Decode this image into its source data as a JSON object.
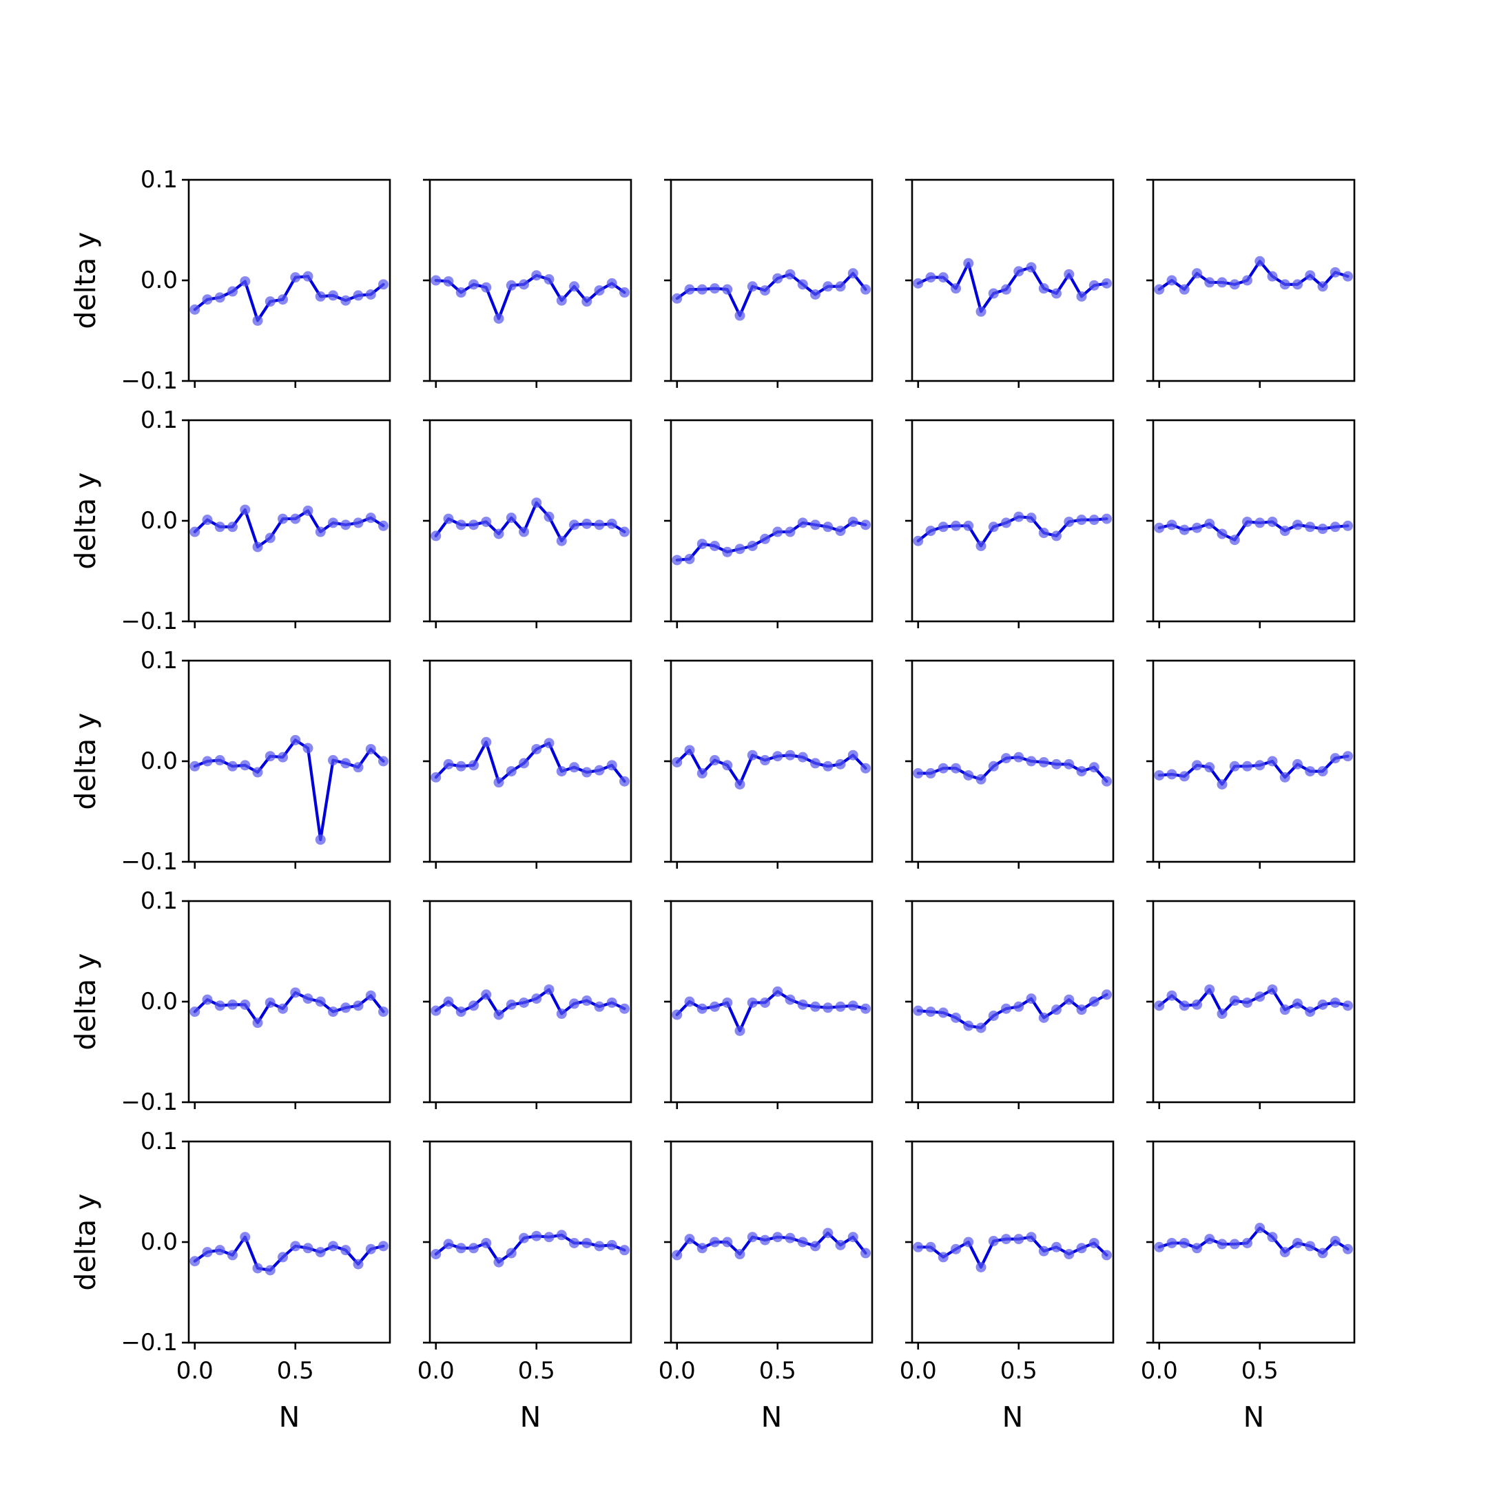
{
  "chart_data": {
    "type": "line",
    "layout": "5x5 small multiples, shared axes",
    "xlabel": "N",
    "ylabel": "delta y",
    "xlim": [
      -0.03,
      0.97
    ],
    "ylim": [
      -0.1,
      0.1
    ],
    "xticks": [
      0.0,
      0.5
    ],
    "xtick_labels": [
      "0.0",
      "0.5"
    ],
    "yticks": [
      -0.1,
      0.0,
      0.1
    ],
    "ytick_labels": [
      "−0.1",
      "0.0",
      "0.1"
    ],
    "grid": false,
    "legend": "none",
    "line_color": "#0000dd",
    "marker_color": "#5555ee",
    "x": [
      0.0,
      0.0625,
      0.125,
      0.1875,
      0.25,
      0.3125,
      0.375,
      0.4375,
      0.5,
      0.5625,
      0.625,
      0.6875,
      0.75,
      0.8125,
      0.875,
      0.9375
    ],
    "panels": [
      [
        {
          "values": [
            -0.029,
            -0.019,
            -0.017,
            -0.011,
            -0.001,
            -0.04,
            -0.021,
            -0.019,
            0.003,
            0.004,
            -0.016,
            -0.015,
            -0.02,
            -0.015,
            -0.014,
            -0.004
          ]
        },
        {
          "values": [
            0.0,
            -0.001,
            -0.012,
            -0.004,
            -0.007,
            -0.038,
            -0.005,
            -0.004,
            0.005,
            0.001,
            -0.02,
            -0.006,
            -0.021,
            -0.01,
            -0.003,
            -0.012
          ]
        },
        {
          "values": [
            -0.018,
            -0.009,
            -0.009,
            -0.008,
            -0.009,
            -0.035,
            -0.006,
            -0.01,
            0.002,
            0.006,
            -0.004,
            -0.014,
            -0.006,
            -0.006,
            0.007,
            -0.009
          ]
        },
        {
          "values": [
            -0.003,
            0.003,
            0.003,
            -0.008,
            0.017,
            -0.031,
            -0.013,
            -0.009,
            0.009,
            0.013,
            -0.008,
            -0.013,
            0.006,
            -0.016,
            -0.005,
            -0.003
          ]
        },
        {
          "values": [
            -0.009,
            0.0,
            -0.009,
            0.007,
            -0.002,
            -0.002,
            -0.004,
            0.0,
            0.019,
            0.004,
            -0.004,
            -0.004,
            0.005,
            -0.006,
            0.008,
            0.004
          ]
        }
      ],
      [
        {
          "values": [
            -0.011,
            0.001,
            -0.006,
            -0.006,
            0.011,
            -0.026,
            -0.017,
            0.002,
            0.002,
            0.01,
            -0.011,
            -0.002,
            -0.004,
            -0.002,
            0.003,
            -0.005
          ]
        },
        {
          "values": [
            -0.015,
            0.002,
            -0.004,
            -0.004,
            -0.001,
            -0.013,
            0.003,
            -0.011,
            0.018,
            0.004,
            -0.02,
            -0.004,
            -0.003,
            -0.004,
            -0.003,
            -0.011
          ]
        },
        {
          "values": [
            -0.039,
            -0.038,
            -0.023,
            -0.025,
            -0.031,
            -0.028,
            -0.025,
            -0.018,
            -0.011,
            -0.011,
            -0.002,
            -0.004,
            -0.006,
            -0.01,
            -0.001,
            -0.004
          ]
        },
        {
          "values": [
            -0.02,
            -0.01,
            -0.006,
            -0.005,
            -0.005,
            -0.025,
            -0.006,
            -0.002,
            0.004,
            0.003,
            -0.012,
            -0.015,
            -0.001,
            0.001,
            0.001,
            0.002
          ]
        },
        {
          "values": [
            -0.007,
            -0.004,
            -0.009,
            -0.007,
            -0.003,
            -0.013,
            -0.019,
            -0.001,
            -0.002,
            -0.001,
            -0.01,
            -0.004,
            -0.006,
            -0.008,
            -0.006,
            -0.005
          ]
        }
      ],
      [
        {
          "values": [
            -0.005,
            0.0,
            0.001,
            -0.005,
            -0.004,
            -0.011,
            0.005,
            0.004,
            0.021,
            0.013,
            -0.078,
            0.001,
            -0.002,
            -0.006,
            0.012,
            0.0
          ]
        },
        {
          "values": [
            -0.016,
            -0.003,
            -0.005,
            -0.004,
            0.019,
            -0.021,
            -0.01,
            -0.002,
            0.012,
            0.018,
            -0.01,
            -0.006,
            -0.011,
            -0.009,
            -0.004,
            -0.02
          ]
        },
        {
          "values": [
            -0.001,
            0.011,
            -0.012,
            0.001,
            -0.004,
            -0.023,
            0.006,
            0.001,
            0.005,
            0.006,
            0.004,
            -0.002,
            -0.005,
            -0.003,
            0.006,
            -0.007
          ]
        },
        {
          "values": [
            -0.012,
            -0.012,
            -0.007,
            -0.007,
            -0.014,
            -0.018,
            -0.005,
            0.003,
            0.004,
            0.0,
            -0.001,
            -0.003,
            -0.003,
            -0.01,
            -0.006,
            -0.02
          ]
        },
        {
          "values": [
            -0.014,
            -0.013,
            -0.015,
            -0.004,
            -0.006,
            -0.023,
            -0.005,
            -0.005,
            -0.004,
            0.0,
            -0.016,
            -0.003,
            -0.01,
            -0.01,
            0.003,
            0.005
          ]
        }
      ],
      [
        {
          "values": [
            -0.01,
            0.002,
            -0.004,
            -0.003,
            -0.003,
            -0.021,
            -0.001,
            -0.007,
            0.009,
            0.003,
            0.0,
            -0.01,
            -0.006,
            -0.004,
            0.006,
            -0.01
          ]
        },
        {
          "values": [
            -0.009,
            0.0,
            -0.01,
            -0.004,
            0.007,
            -0.013,
            -0.003,
            -0.001,
            0.003,
            0.012,
            -0.012,
            -0.002,
            0.001,
            -0.005,
            -0.001,
            -0.007
          ]
        },
        {
          "values": [
            -0.013,
            0.0,
            -0.007,
            -0.005,
            -0.001,
            -0.029,
            -0.001,
            -0.001,
            0.01,
            0.002,
            -0.003,
            -0.005,
            -0.006,
            -0.005,
            -0.004,
            -0.007
          ]
        },
        {
          "values": [
            -0.009,
            -0.01,
            -0.011,
            -0.016,
            -0.024,
            -0.026,
            -0.014,
            -0.007,
            -0.005,
            0.003,
            -0.016,
            -0.008,
            0.002,
            -0.008,
            0.0,
            0.007
          ]
        },
        {
          "values": [
            -0.004,
            0.006,
            -0.004,
            -0.003,
            0.012,
            -0.012,
            0.001,
            -0.001,
            0.005,
            0.012,
            -0.008,
            -0.002,
            -0.01,
            -0.003,
            -0.001,
            -0.004
          ]
        }
      ],
      [
        {
          "values": [
            -0.019,
            -0.01,
            -0.008,
            -0.013,
            0.005,
            -0.026,
            -0.028,
            -0.015,
            -0.004,
            -0.006,
            -0.01,
            -0.004,
            -0.008,
            -0.022,
            -0.007,
            -0.004
          ]
        },
        {
          "values": [
            -0.012,
            -0.002,
            -0.006,
            -0.006,
            -0.001,
            -0.02,
            -0.011,
            0.004,
            0.006,
            0.005,
            0.007,
            -0.001,
            -0.001,
            -0.004,
            -0.003,
            -0.008
          ]
        },
        {
          "values": [
            -0.013,
            0.003,
            -0.006,
            0.0,
            0.0,
            -0.012,
            0.005,
            0.002,
            0.005,
            0.004,
            0.0,
            -0.004,
            0.009,
            -0.003,
            0.005,
            -0.011
          ]
        },
        {
          "values": [
            -0.005,
            -0.005,
            -0.015,
            -0.007,
            0.0,
            -0.025,
            0.001,
            0.003,
            0.003,
            0.005,
            -0.009,
            -0.005,
            -0.012,
            -0.006,
            -0.001,
            -0.013
          ]
        },
        {
          "values": [
            -0.005,
            -0.001,
            -0.001,
            -0.006,
            0.003,
            -0.002,
            -0.002,
            -0.001,
            0.014,
            0.005,
            -0.01,
            -0.001,
            -0.004,
            -0.011,
            0.001,
            -0.007
          ]
        }
      ]
    ]
  }
}
